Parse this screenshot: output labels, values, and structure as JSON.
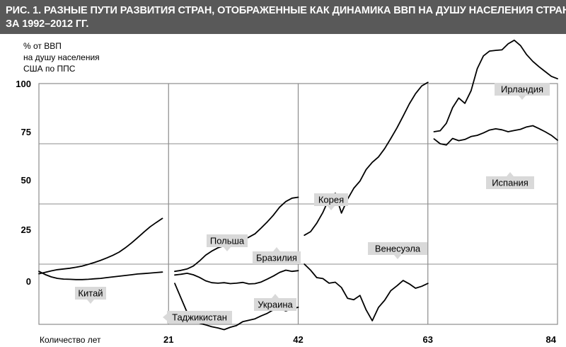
{
  "title": {
    "line1": "РИС. 1. РАЗНЫЕ ПУТИ РАЗВИТИЯ СТРАН, ОТОБРАЖЕННЫЕ КАК ДИНАМИКА ВВП НА ДУШУ НАСЕЛЕНИЯ СТРАН",
    "line2": "ЗА 1992–2012 ГГ."
  },
  "chart_data": {
    "type": "line",
    "ylabel": [
      "% от ВВП",
      "на душу населения",
      "США по ППС"
    ],
    "xlabel": "Количество лет",
    "x_ticks": [
      "21",
      "42",
      "63",
      "84"
    ],
    "xlim": [
      0,
      84
    ],
    "grid": true,
    "colors": {
      "line": "#000000",
      "grid": "#8c8c8c",
      "label_bg": "#d9d9d9",
      "title_bg": "#595959"
    },
    "panels": [
      {
        "y_ticks": [
          "100",
          "75",
          "50",
          "25",
          "0"
        ],
        "series": [
          {
            "name": "Китай",
            "x": [
              0,
              1,
              2,
              3,
              4,
              5,
              6,
              7,
              8,
              9,
              10,
              11,
              12,
              13,
              14,
              15,
              16,
              17,
              18,
              19,
              20
            ],
            "y": [
              -4,
              -3.4,
              -2.8,
              -2.3,
              -2,
              -1.7,
              -1.3,
              -0.8,
              -0.1,
              0.7,
              1.6,
              2.6,
              3.7,
              5,
              6.8,
              8.8,
              11,
              13.3,
              15.5,
              17.3,
              19
            ]
          },
          {
            "name": "Таджикистан",
            "x": [
              0,
              1,
              2,
              3,
              4,
              5,
              6,
              7,
              8,
              9,
              10,
              11,
              12,
              13,
              14,
              15,
              16,
              17,
              18,
              19,
              20
            ],
            "y": [
              -3,
              -4.3,
              -5.3,
              -5.9,
              -6.2,
              -6.3,
              -6.4,
              -6.4,
              -6.3,
              -6.1,
              -5.9,
              -5.6,
              -5.3,
              -5,
              -4.7,
              -4.4,
              -4.1,
              -3.9,
              -3.7,
              -3.5,
              -3.3
            ]
          }
        ]
      },
      {
        "y_ticks": [
          "100",
          "75",
          "50",
          "25",
          "0"
        ],
        "series": [
          {
            "name": "Польша",
            "x": [
              22,
              23,
              24,
              25,
              26,
              27,
              28,
              29,
              30,
              31,
              32,
              33,
              34,
              35,
              36,
              37,
              38,
              39,
              40,
              41,
              42
            ],
            "y": [
              -3,
              -2.6,
              -2,
              -0.8,
              1.3,
              3.7,
              5.4,
              6.8,
              7.6,
              8.2,
              9,
              10,
              11.2,
              12.6,
              15,
              17.6,
              20.4,
              23.7,
              26,
              27.4,
              27.8
            ]
          },
          {
            "name": "Бразилия",
            "x": [
              22,
              23,
              24,
              25,
              26,
              27,
              28,
              29,
              30,
              31,
              32,
              33,
              34,
              35,
              36,
              37,
              38,
              39,
              40,
              41,
              42
            ],
            "y": [
              -4.5,
              -4.2,
              -3.8,
              -4.4,
              -5.5,
              -6.9,
              -7.7,
              -7.9,
              -7.7,
              -8.1,
              -7.9,
              -7.6,
              -8.2,
              -8.1,
              -7.4,
              -6.2,
              -4.9,
              -3.4,
              -2.5,
              -3,
              -2.7
            ]
          },
          {
            "name": "Украина",
            "x": [
              22,
              23,
              24,
              25,
              26,
              27,
              28,
              29,
              30,
              31,
              32,
              33,
              34,
              35,
              36,
              37,
              38,
              39,
              40,
              41,
              42
            ],
            "y": [
              -8,
              -14,
              -20,
              -23,
              -24.5,
              -25.2,
              -26,
              -26.5,
              -27.2,
              -26.2,
              -25.5,
              -23.9,
              -23.3,
              -22.7,
              -21.5,
              -20.4,
              -18.9,
              -18.5,
              -19.4,
              -18.6,
              -17.9
            ]
          }
        ]
      },
      {
        "y_ticks": [
          "100",
          "75",
          "50",
          "25",
          "0"
        ],
        "series": [
          {
            "name": "Корея",
            "x": [
              43,
              44,
              45,
              46,
              47,
              48,
              49,
              50,
              51,
              52,
              53,
              54,
              55,
              56,
              57,
              58,
              59,
              60,
              61,
              62,
              63
            ],
            "y": [
              12,
              13.5,
              17,
              21.5,
              27.2,
              29.4,
              21.2,
              27,
              31.5,
              34.5,
              39.3,
              42.3,
              44.5,
              48,
              52.2,
              56.6,
              61.5,
              66.6,
              70.8,
              74,
              75.5
            ]
          },
          {
            "name": "Венесуэла",
            "x": [
              43,
              44,
              45,
              46,
              47,
              48,
              49,
              50,
              51,
              52,
              53,
              54,
              55,
              56,
              57,
              58,
              59,
              60,
              61,
              62,
              63
            ],
            "y": [
              0,
              -2.5,
              -5.6,
              -6,
              -7.9,
              -7.5,
              -9.7,
              -14.2,
              -14.8,
              -13,
              -19,
              -23.5,
              -18,
              -15,
              -11,
              -9,
              -6.8,
              -8.2,
              -10,
              -9.2,
              -8
            ]
          }
        ]
      },
      {
        "y_ticks": [
          "100",
          "75",
          "50",
          "25",
          "0"
        ],
        "series": [
          {
            "name": "Ирландия",
            "x": [
              64,
              65,
              66,
              67,
              68,
              69,
              70,
              71,
              72,
              73,
              74,
              75,
              76,
              77,
              78,
              79,
              80,
              81,
              82,
              83,
              84
            ],
            "y": [
              55,
              55.4,
              58.5,
              65,
              69,
              66.8,
              72,
              81.2,
              86.5,
              88.5,
              88.8,
              89,
              91.5,
              93,
              90.8,
              87,
              84.2,
              82,
              80,
              78,
              77
            ]
          },
          {
            "name": "Испания",
            "x": [
              64,
              65,
              66,
              67,
              68,
              69,
              70,
              71,
              72,
              73,
              74,
              75,
              76,
              77,
              78,
              79,
              80,
              81,
              82,
              83,
              84
            ],
            "y": [
              52,
              50,
              49.5,
              52.2,
              51.3,
              51.8,
              53,
              53.5,
              54.5,
              55.7,
              56.2,
              55.8,
              55,
              55.5,
              56,
              57,
              57.5,
              56.3,
              55,
              53.5,
              51.5
            ]
          }
        ]
      }
    ],
    "labels": {
      "china": "Китай",
      "tajikistan": "Таджикистан",
      "poland": "Польша",
      "brazil": "Бразилия",
      "ukraine": "Украина",
      "korea": "Корея",
      "venezuela": "Венесуэла",
      "ireland": "Ирландия",
      "spain": "Испания"
    }
  }
}
